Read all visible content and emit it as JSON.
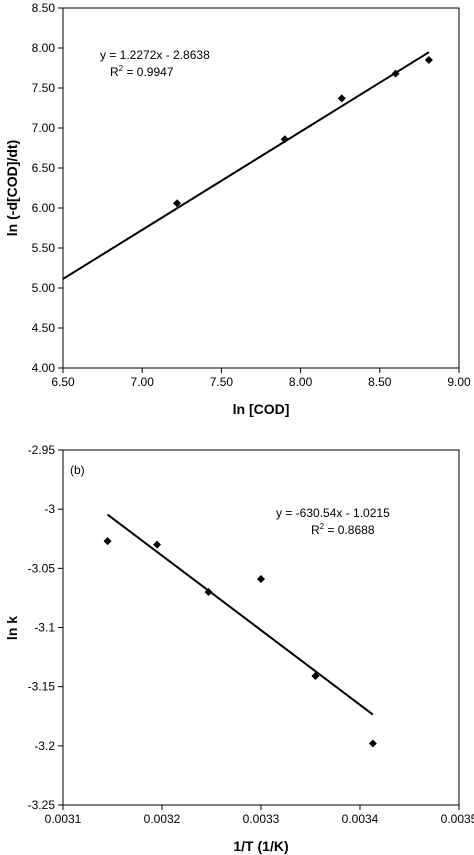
{
  "chart_data": [
    {
      "type": "scatter",
      "xlabel": "ln [COD]",
      "ylabel": "ln (-d[COD]/dt)",
      "xlim": [
        6.5,
        9.0
      ],
      "ylim": [
        4.0,
        8.5
      ],
      "xticks": [
        "6.50",
        "7.00",
        "7.50",
        "8.00",
        "8.50",
        "9.00"
      ],
      "xtick_values": [
        6.5,
        7.0,
        7.5,
        8.0,
        8.5,
        9.0
      ],
      "yticks": [
        "4.00",
        "4.50",
        "5.00",
        "5.50",
        "6.00",
        "6.50",
        "7.00",
        "7.50",
        "8.00",
        "8.50"
      ],
      "ytick_values": [
        4.0,
        4.5,
        5.0,
        5.5,
        6.0,
        6.5,
        7.0,
        7.5,
        8.0,
        8.5
      ],
      "grid": false,
      "legend": "none",
      "series": [
        {
          "x": [
            7.22,
            7.9,
            8.26,
            8.6,
            8.81
          ],
          "y": [
            6.06,
            6.86,
            7.37,
            7.68,
            7.85
          ],
          "marker": "diamond"
        }
      ],
      "trendline": {
        "slope": 1.2272,
        "intercept": -2.8638,
        "x_range": [
          6.5,
          8.81
        ]
      },
      "equation_text": "y = 1.2272x - 2.8638",
      "r2_prefix": "R",
      "r2_value": " = 0.9947"
    },
    {
      "type": "scatter",
      "panel_label": "(b)",
      "xlabel": "1/T (1/K)",
      "ylabel": "ln k",
      "xlim": [
        0.0031,
        0.0035
      ],
      "ylim": [
        -3.25,
        -2.95
      ],
      "xticks": [
        "0.0031",
        "0.0032",
        "0.0033",
        "0.0034",
        "0.0035"
      ],
      "xtick_values": [
        0.0031,
        0.0032,
        0.0033,
        0.0034,
        0.0035
      ],
      "yticks": [
        "-2.95",
        "-3",
        "-3.05",
        "-3.1",
        "-3.15",
        "-3.2",
        "-3.25"
      ],
      "ytick_values": [
        -2.95,
        -3.0,
        -3.05,
        -3.1,
        -3.15,
        -3.2,
        -3.25
      ],
      "grid": false,
      "legend": "none",
      "series": [
        {
          "x": [
            0.003145,
            0.003195,
            0.003247,
            0.0033,
            0.003355,
            0.003413
          ],
          "y": [
            -3.027,
            -3.03,
            -3.07,
            -3.059,
            -3.141,
            -3.198
          ],
          "marker": "diamond"
        }
      ],
      "trendline": {
        "slope": -630.54,
        "intercept": -1.0215,
        "x_range": [
          0.003145,
          0.003413
        ]
      },
      "equation_text": "y = -630.54x - 1.0215",
      "r2_prefix": "R",
      "r2_value": " = 0.8688"
    }
  ]
}
